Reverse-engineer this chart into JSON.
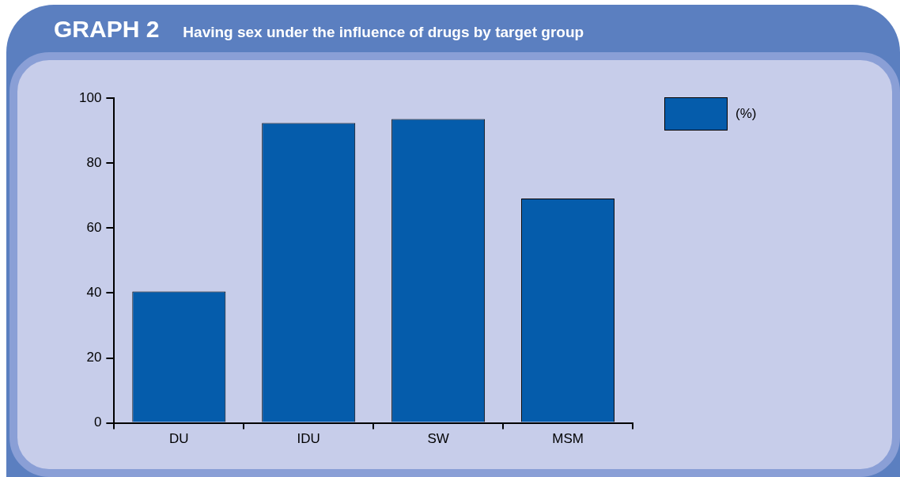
{
  "chart_data": {
    "type": "bar",
    "title": "GRAPH 2",
    "subtitle": "Having sex under the influence of drugs by target group",
    "categories": [
      "DU",
      "IDU",
      "SW",
      "MSM"
    ],
    "series": [
      {
        "name": "(%)",
        "color": "#055cab",
        "values": [
          40.5,
          92.4,
          93.6,
          69.1
        ]
      }
    ],
    "ylim": [
      0,
      100
    ],
    "yticks": [
      0,
      20,
      40,
      60,
      80,
      100
    ],
    "grid": false,
    "legend": "top right"
  }
}
